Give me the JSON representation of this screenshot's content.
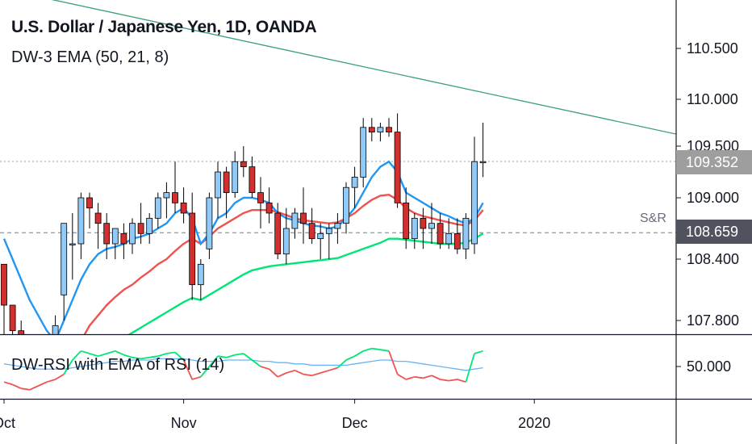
{
  "header": {
    "symbol_title": "U.S. Dollar / Japanese Yen, 1D, OANDA",
    "indicator_ema": "DW-3 EMA (50, 21, 8)",
    "indicator_rsi": "DW-RSI with EMA of RSI (14)"
  },
  "price_tags": {
    "last_price": "109.352",
    "support_level": "108.659",
    "last_price_color": "#9e9e9e",
    "support_color": "#50535e"
  },
  "annotations": {
    "support_resistance_label": "S&R"
  },
  "colors": {
    "up_candle": "#90caf9",
    "down_candle": "#d32f2f",
    "ema_fast": "#2196f3",
    "ema_mid": "#ef5350",
    "ema_slow": "#00e676",
    "trendline": "#3c9e7c",
    "rsi_line": "#ef5350",
    "rsi_line_above": "#00e676",
    "rsi_ema": "#64b5f6"
  },
  "chart_data": {
    "type": "candlestick",
    "price_axis": {
      "ticks": [
        110.5,
        110.0,
        109.5,
        109.0,
        108.4,
        107.8
      ],
      "tick_labels": [
        "110.500",
        "110.000",
        "109.500",
        "109.000",
        "108.400",
        "107.800"
      ],
      "scale": "log"
    },
    "rsi_axis": {
      "ticks": [
        50
      ],
      "tick_labels": [
        "50.000"
      ]
    },
    "time_axis": {
      "labels": [
        "Oct",
        "Nov",
        "Dec",
        "2020"
      ],
      "label_bar_index": [
        0,
        21,
        41,
        62
      ]
    },
    "candles": [
      [
        108.35,
        108.35,
        107.5,
        107.95
      ],
      [
        107.95,
        107.95,
        107.5,
        107.7
      ],
      [
        107.7,
        107.8,
        107.4,
        107.55
      ],
      [
        107.4,
        107.6,
        107.3,
        107.5
      ],
      [
        107.4,
        107.65,
        107.3,
        107.55
      ],
      [
        107.45,
        107.6,
        107.25,
        107.4
      ],
      [
        107.55,
        107.85,
        107.4,
        107.75
      ],
      [
        108.05,
        108.75,
        107.8,
        108.75
      ],
      [
        108.55,
        108.85,
        108.2,
        108.55
      ],
      [
        108.55,
        109.05,
        108.4,
        109.0
      ],
      [
        109.0,
        109.05,
        108.7,
        108.9
      ],
      [
        108.85,
        108.95,
        108.5,
        108.75
      ],
      [
        108.75,
        108.85,
        108.4,
        108.55
      ],
      [
        108.55,
        108.7,
        108.4,
        108.7
      ],
      [
        108.65,
        108.75,
        108.4,
        108.55
      ],
      [
        108.55,
        108.8,
        108.45,
        108.75
      ],
      [
        108.75,
        108.95,
        108.55,
        108.65
      ],
      [
        108.65,
        108.85,
        108.55,
        108.8
      ],
      [
        108.8,
        109.05,
        108.7,
        109.0
      ],
      [
        109.0,
        109.15,
        108.8,
        109.05
      ],
      [
        109.05,
        109.35,
        108.85,
        108.95
      ],
      [
        108.95,
        109.1,
        108.75,
        108.85
      ],
      [
        108.85,
        109.05,
        108.0,
        108.15
      ],
      [
        108.15,
        108.4,
        108.0,
        108.35
      ],
      [
        108.5,
        109.05,
        108.4,
        109.0
      ],
      [
        109.0,
        109.35,
        108.8,
        109.25
      ],
      [
        109.25,
        109.3,
        108.8,
        109.05
      ],
      [
        109.05,
        109.45,
        109.0,
        109.35
      ],
      [
        109.35,
        109.5,
        109.2,
        109.3
      ],
      [
        109.3,
        109.4,
        109.0,
        109.05
      ],
      [
        109.05,
        109.2,
        108.7,
        108.95
      ],
      [
        108.95,
        109.1,
        108.75,
        108.85
      ],
      [
        108.85,
        108.95,
        108.4,
        108.45
      ],
      [
        108.45,
        108.9,
        108.35,
        108.7
      ],
      [
        108.7,
        108.9,
        108.6,
        108.85
      ],
      [
        108.85,
        109.1,
        108.55,
        108.75
      ],
      [
        108.75,
        108.9,
        108.55,
        108.6
      ],
      [
        108.6,
        108.75,
        108.4,
        108.65
      ],
      [
        108.65,
        108.75,
        108.4,
        108.7
      ],
      [
        108.7,
        108.85,
        108.55,
        108.75
      ],
      [
        108.75,
        109.15,
        108.65,
        109.1
      ],
      [
        109.1,
        109.3,
        108.9,
        109.2
      ],
      [
        109.2,
        109.8,
        109.1,
        109.7
      ],
      [
        109.7,
        109.8,
        109.55,
        109.65
      ],
      [
        109.65,
        109.75,
        109.55,
        109.7
      ],
      [
        109.7,
        109.8,
        109.6,
        109.65
      ],
      [
        109.65,
        109.85,
        108.9,
        108.95
      ],
      [
        108.95,
        109.1,
        108.5,
        108.6
      ],
      [
        108.6,
        108.85,
        108.5,
        108.8
      ],
      [
        108.8,
        108.9,
        108.5,
        108.7
      ],
      [
        108.7,
        108.95,
        108.55,
        108.75
      ],
      [
        108.75,
        108.85,
        108.5,
        108.55
      ],
      [
        108.55,
        108.8,
        108.5,
        108.65
      ],
      [
        108.65,
        108.8,
        108.45,
        108.5
      ],
      [
        108.5,
        108.85,
        108.4,
        108.8
      ],
      [
        108.55,
        109.6,
        108.45,
        109.35
      ],
      [
        109.35,
        109.75,
        109.2,
        109.35
      ]
    ],
    "indicators": {
      "ema_8": [
        108.6,
        108.4,
        108.2,
        108.0,
        107.85,
        107.7,
        107.6,
        107.8,
        108.0,
        108.2,
        108.35,
        108.45,
        108.5,
        108.52,
        108.55,
        108.6,
        108.62,
        108.65,
        108.7,
        108.75,
        108.85,
        108.9,
        108.8,
        108.55,
        108.65,
        108.8,
        108.85,
        108.95,
        109.0,
        109.0,
        108.98,
        108.95,
        108.85,
        108.8,
        108.78,
        108.75,
        108.73,
        108.72,
        108.7,
        108.72,
        108.8,
        108.9,
        109.05,
        109.2,
        109.3,
        109.35,
        109.25,
        109.05,
        109.0,
        108.95,
        108.9,
        108.85,
        108.82,
        108.78,
        108.75,
        108.8,
        108.95
      ],
      "ema_21": [
        107.4,
        107.35,
        107.3,
        107.25,
        107.2,
        107.15,
        107.15,
        107.3,
        107.45,
        107.6,
        107.75,
        107.85,
        107.95,
        108.03,
        108.1,
        108.15,
        108.22,
        108.28,
        108.35,
        108.4,
        108.48,
        108.55,
        108.6,
        108.55,
        108.62,
        108.7,
        108.75,
        108.8,
        108.85,
        108.88,
        108.88,
        108.88,
        108.86,
        108.83,
        108.8,
        108.78,
        108.77,
        108.76,
        108.75,
        108.76,
        108.8,
        108.85,
        108.92,
        108.98,
        109.02,
        109.03,
        108.98,
        108.9,
        108.85,
        108.82,
        108.8,
        108.78,
        108.76,
        108.74,
        108.73,
        108.78,
        108.88
      ],
      "ema_50": [
        107.2,
        107.18,
        107.16,
        107.14,
        107.12,
        107.1,
        107.1,
        107.15,
        107.22,
        107.3,
        107.38,
        107.45,
        107.52,
        107.58,
        107.63,
        107.68,
        107.73,
        107.78,
        107.83,
        107.88,
        107.93,
        107.98,
        108.02,
        108.0,
        108.05,
        108.1,
        108.15,
        108.2,
        108.25,
        108.29,
        108.31,
        108.33,
        108.34,
        108.35,
        108.36,
        108.37,
        108.38,
        108.39,
        108.4,
        108.41,
        108.44,
        108.47,
        108.5,
        108.53,
        108.56,
        108.6,
        108.6,
        108.59,
        108.58,
        108.57,
        108.56,
        108.55,
        108.55,
        108.55,
        108.56,
        108.6,
        108.65
      ]
    },
    "trendline": {
      "from": {
        "bar": -1,
        "price": 111.1
      },
      "to": {
        "bar": 79,
        "price": 109.62
      }
    },
    "horizontal_lines": [
      {
        "price": 109.352
      },
      {
        "price": 108.659
      }
    ],
    "rsi": {
      "values": [
        38,
        36,
        33,
        32,
        35,
        38,
        40,
        44,
        55,
        62,
        60,
        58,
        60,
        62,
        59,
        57,
        56,
        57,
        58,
        60,
        61,
        55,
        40,
        42,
        50,
        58,
        57,
        59,
        60,
        55,
        50,
        48,
        42,
        45,
        47,
        44,
        43,
        45,
        47,
        49,
        55,
        58,
        62,
        64,
        63,
        62,
        44,
        40,
        42,
        41,
        43,
        40,
        39,
        40,
        38,
        60,
        62
      ],
      "rsi_ema": [
        52,
        51,
        50,
        49,
        48,
        48,
        48,
        48,
        49,
        50,
        51,
        52,
        53,
        54,
        54,
        55,
        55,
        55,
        56,
        56,
        56,
        56,
        55,
        54,
        54,
        54,
        55,
        55,
        55,
        55,
        54,
        54,
        53,
        53,
        52,
        52,
        51,
        51,
        51,
        51,
        51,
        52,
        53,
        54,
        55,
        55,
        54,
        54,
        53,
        52,
        51,
        50,
        49,
        48,
        47,
        48,
        49
      ],
      "above_threshold": 50,
      "range": [
        25,
        75
      ]
    }
  }
}
